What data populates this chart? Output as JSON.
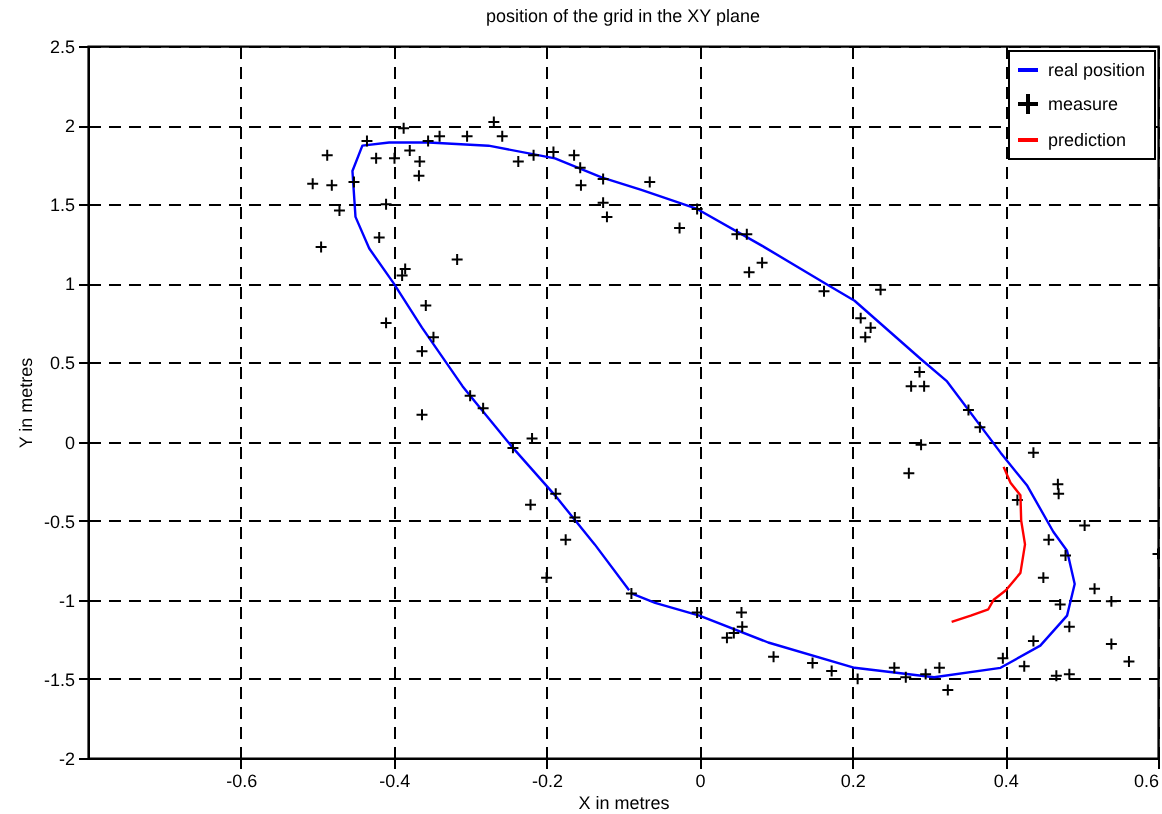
{
  "chart_data": {
    "type": "line",
    "title": "position of the grid in the XY plane",
    "xlabel": "X in metres",
    "ylabel": "Y in metres",
    "xlim": [
      -0.8,
      0.6
    ],
    "xticks": [
      -0.6,
      -0.4,
      -0.2,
      0,
      0.2,
      0.4,
      0.6
    ],
    "ylim": [
      -2,
      2.5
    ],
    "yticks": [
      -2,
      -1.5,
      -1,
      -0.5,
      0,
      0.5,
      1,
      1.5,
      2,
      2.5
    ],
    "grid": true,
    "legend": "top right",
    "series": [
      {
        "name": "real position",
        "color": "#0000ff",
        "marker": "none",
        "x": [
          -0.089,
          -0.058,
          0,
          0.09,
          0.203,
          0.307,
          0.394,
          0.446,
          0.481,
          0.491,
          0.481,
          0.463,
          0.429,
          0.394,
          0.324,
          0.29,
          0.203,
          0.168,
          0.081,
          -0.003,
          -0.076,
          -0.128,
          -0.189,
          -0.276,
          -0.354,
          -0.406,
          -0.441,
          -0.454,
          -0.45,
          -0.432,
          -0.4,
          -0.363,
          -0.31,
          -0.3,
          -0.244,
          -0.189,
          -0.137,
          -0.092
        ],
        "values": [
          -0.96,
          -1.02,
          -1.1,
          -1.27,
          -1.43,
          -1.49,
          -1.43,
          -1.29,
          -1.1,
          -0.9,
          -0.69,
          -0.57,
          -0.28,
          -0.07,
          0.38,
          0.52,
          0.89,
          0.99,
          1.24,
          1.47,
          1.59,
          1.67,
          1.79,
          1.87,
          1.89,
          1.89,
          1.87,
          1.71,
          1.42,
          1.22,
          1.0,
          0.72,
          0.35,
          0.29,
          -0.04,
          -0.34,
          -0.65,
          -0.94
        ]
      },
      {
        "name": "measure",
        "type": "scatter",
        "color": "#000000",
        "marker": "cross",
        "x": [
          -0.506,
          -0.487,
          -0.481,
          -0.471,
          -0.495,
          -0.452,
          -0.435,
          -0.423,
          -0.41,
          -0.419,
          -0.399,
          -0.387,
          -0.379,
          -0.366,
          -0.367,
          -0.355,
          -0.34,
          -0.385,
          -0.389,
          -0.41,
          -0.358,
          -0.348,
          -0.363,
          -0.317,
          -0.304,
          -0.269,
          -0.258,
          -0.237,
          -0.217,
          -0.191,
          -0.164,
          -0.156,
          -0.155,
          -0.126,
          -0.126,
          -0.121,
          -0.065,
          -0.026,
          -0.003,
          0.049,
          0.062,
          0.065,
          0.082,
          0.163,
          0.237,
          0.211,
          0.224,
          0.217,
          0.288,
          0.277,
          0.294,
          -0.363,
          -0.3,
          -0.283,
          -0.244,
          -0.219,
          -0.188,
          -0.221,
          -0.163,
          -0.175,
          -0.2,
          -0.089,
          0.352,
          0.367,
          0.29,
          0.274,
          0.437,
          0.469,
          0.47,
          0.416,
          0.504,
          0.457,
          0.479,
          0.6,
          0.45,
          0.517,
          0.539,
          0.472,
          0.484,
          0.437,
          0.539,
          0.562,
          0.397,
          0.425,
          0.467,
          0.484,
          -0.003,
          0.055,
          0.056,
          0.045,
          0.036,
          0.097,
          0.148,
          0.173,
          0.207,
          0.255,
          0.27,
          0.296,
          0.314,
          0.325
        ],
        "values": [
          1.63,
          1.81,
          1.62,
          1.46,
          1.23,
          1.64,
          1.9,
          1.79,
          1.5,
          1.29,
          1.79,
          1.98,
          1.84,
          1.77,
          1.68,
          1.9,
          1.93,
          1.09,
          1.05,
          0.75,
          0.86,
          0.66,
          0.57,
          1.15,
          1.93,
          2.02,
          1.93,
          1.77,
          1.81,
          1.83,
          1.81,
          1.73,
          1.62,
          1.66,
          1.51,
          1.42,
          1.64,
          1.35,
          1.47,
          1.31,
          1.31,
          1.07,
          1.13,
          0.95,
          0.96,
          0.78,
          0.72,
          0.66,
          0.44,
          0.35,
          0.35,
          0.17,
          0.29,
          0.21,
          -0.04,
          0.02,
          -0.33,
          -0.4,
          -0.48,
          -0.62,
          -0.86,
          -0.96,
          0.2,
          0.09,
          -0.02,
          -0.2,
          -0.07,
          -0.27,
          -0.33,
          -0.37,
          -0.53,
          -0.62,
          -0.72,
          -0.71,
          -0.86,
          -0.93,
          -1.01,
          -1.03,
          -1.17,
          -1.26,
          -1.28,
          -1.39,
          -1.37,
          -1.42,
          -1.48,
          -1.47,
          -1.08,
          -1.08,
          -1.17,
          -1.21,
          -1.24,
          -1.36,
          -1.4,
          -1.45,
          -1.5,
          -1.43,
          -1.49,
          -1.47,
          -1.43,
          -1.57
        ]
      },
      {
        "name": "prediction",
        "color": "#ff0000",
        "marker": "none",
        "x": [
          0.398,
          0.407,
          0.42,
          0.421,
          0.426,
          0.42,
          0.401,
          0.385,
          0.378,
          0.355,
          0.33
        ],
        "values": [
          -0.16,
          -0.26,
          -0.34,
          -0.5,
          -0.65,
          -0.83,
          -0.94,
          -1.0,
          -1.06,
          -1.1,
          -1.14
        ]
      }
    ]
  }
}
